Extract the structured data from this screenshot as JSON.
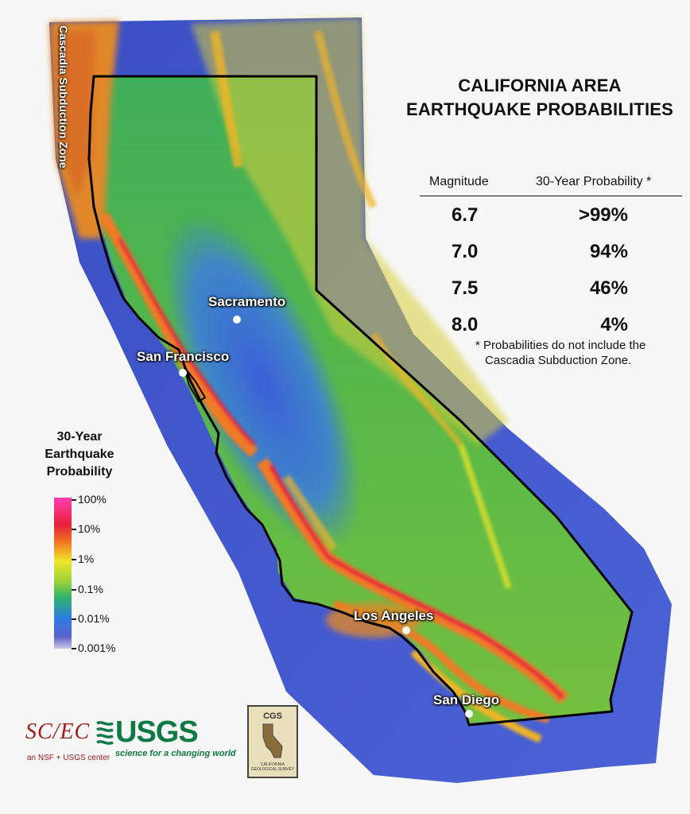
{
  "title": {
    "line1": "CALIFORNIA AREA",
    "line2": "EARTHQUAKE PROBABILITIES"
  },
  "table": {
    "headers": [
      "Magnitude",
      "30-Year Probability *"
    ],
    "rows": [
      {
        "magnitude": "6.7",
        "probability": ">99%"
      },
      {
        "magnitude": "7.0",
        "probability": "94%"
      },
      {
        "magnitude": "7.5",
        "probability": "46%"
      },
      {
        "magnitude": "8.0",
        "probability": "4%"
      }
    ]
  },
  "footnote": {
    "line1": "* Probabilities do not include the",
    "line2": "Cascadia Subduction Zone."
  },
  "legend": {
    "title": [
      "30-Year",
      "Earthquake",
      "Probability"
    ],
    "ticks": [
      "100%",
      "10%",
      "1%",
      "0.1%",
      "0.01%",
      "0.001%"
    ],
    "colors": [
      "#ff3fb0",
      "#e8203a",
      "#f07a25",
      "#f1e528",
      "#98d13b",
      "#2eb36a",
      "#2f7be6",
      "#5a63c9",
      "#c9c7e8"
    ]
  },
  "map_labels": {
    "cascadia": "Cascadia Subduction Zone",
    "cities": [
      "Sacramento",
      "San Francisco",
      "Los Angeles",
      "San Diego"
    ]
  },
  "logos": {
    "scec": "SC/EC",
    "scec_sub": "an NSF + USGS center",
    "usgs": "USGS",
    "usgs_sub": "science for a changing world",
    "cgs": "CGS",
    "cgs_sub": "CALIFORNIA GEOLOGICAL SURVEY"
  }
}
